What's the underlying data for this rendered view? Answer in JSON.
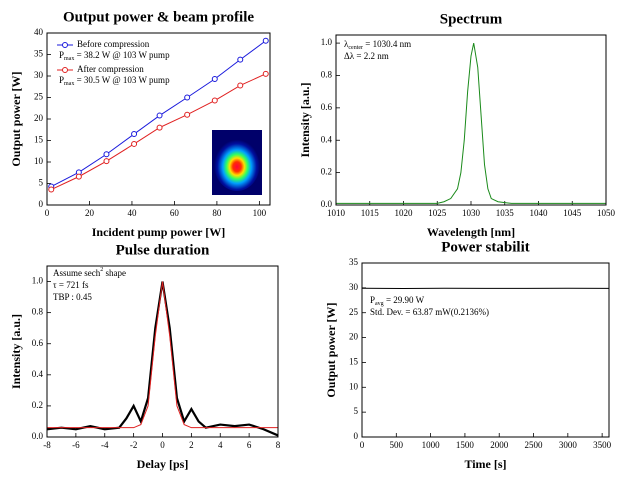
{
  "chart_data": [
    {
      "type": "line",
      "title": "Output power & beam profile",
      "xlabel": "Incident pump power [W]",
      "ylabel": "Output power [W]",
      "xlim": [
        0,
        105
      ],
      "xticks": [
        0,
        20,
        40,
        60,
        80,
        100
      ],
      "ylim": [
        0,
        40
      ],
      "yticks": [
        0,
        5,
        10,
        15,
        20,
        25,
        30,
        35,
        40
      ],
      "markers": true,
      "series": [
        {
          "name": "Before compression",
          "color": "#1a1adc",
          "x": [
            2,
            15,
            28,
            41,
            53,
            66,
            79,
            91,
            103
          ],
          "values": [
            4.3,
            7.6,
            11.8,
            16.5,
            20.8,
            25,
            29.3,
            33.8,
            38.2
          ]
        },
        {
          "name": "After compression",
          "color": "#e02020",
          "x": [
            2,
            15,
            28,
            41,
            53,
            66,
            79,
            91,
            103
          ],
          "values": [
            3.6,
            6.6,
            10.2,
            14.2,
            18,
            21,
            24.3,
            27.8,
            30.5
          ]
        }
      ],
      "annotations": [
        [
          {
            "t": "P"
          },
          {
            "t": "max",
            "sub": true
          },
          {
            "t": " = 38.2 W @ 103 W pump"
          }
        ],
        [
          {
            "t": "P"
          },
          {
            "t": "max",
            "sub": true
          },
          {
            "t": " = 30.5 W @ 103 W pump"
          }
        ]
      ]
    },
    {
      "type": "line",
      "title": "Spectrum",
      "xlabel": "Wavelength [nm]",
      "ylabel": "Intensity [a.u.]",
      "xlim": [
        1010,
        1050
      ],
      "xticks": [
        1010,
        1015,
        1020,
        1025,
        1030,
        1035,
        1040,
        1045,
        1050
      ],
      "ylim": [
        0,
        1.05
      ],
      "yticks": [
        {
          "value": 0,
          "label": "0.0"
        },
        0.2,
        0.4,
        0.6,
        0.8,
        {
          "value": 1,
          "label": "1.0"
        }
      ],
      "series": [
        {
          "color": "#1a8a1a",
          "x": [
            1010,
            1020,
            1025,
            1026,
            1027,
            1028,
            1028.5,
            1029,
            1029.5,
            1030,
            1030.4,
            1031,
            1031.5,
            1032,
            1032.5,
            1033,
            1034,
            1036,
            1050
          ],
          "values": [
            0.01,
            0.01,
            0.01,
            0.02,
            0.04,
            0.1,
            0.2,
            0.4,
            0.7,
            0.92,
            1.0,
            0.85,
            0.55,
            0.25,
            0.1,
            0.04,
            0.02,
            0.01,
            0.01
          ]
        }
      ],
      "annotations": [
        [
          {
            "t": "λ"
          },
          {
            "t": "center",
            "sub": true
          },
          {
            "t": " = 1030.4 nm"
          }
        ],
        [
          {
            "t": "Δλ = 2.2 nm"
          }
        ]
      ]
    },
    {
      "type": "line",
      "title": "Pulse duration",
      "xlabel": "Delay [ps]",
      "ylabel": "Intensity [a.u.]",
      "xlim": [
        -8,
        8
      ],
      "xticks": [
        -8,
        -6,
        -4,
        -2,
        0,
        2,
        4,
        6,
        8
      ],
      "ylim": [
        0,
        1.1
      ],
      "yticks": [
        {
          "value": 0,
          "label": "0.0"
        },
        0.2,
        0.4,
        0.6,
        0.8,
        {
          "value": 1,
          "label": "1.0"
        }
      ],
      "series": [
        {
          "color": "#000000",
          "width": 2.2,
          "x": [
            -8,
            -7,
            -6,
            -5,
            -4,
            -3,
            -2.5,
            -2,
            -1.5,
            -1,
            -0.5,
            0,
            0.5,
            1,
            1.5,
            2,
            2.5,
            3,
            4,
            5,
            6,
            7,
            8
          ],
          "values": [
            0.05,
            0.06,
            0.05,
            0.07,
            0.05,
            0.06,
            0.12,
            0.2,
            0.1,
            0.25,
            0.7,
            1.0,
            0.7,
            0.25,
            0.1,
            0.18,
            0.1,
            0.06,
            0.08,
            0.07,
            0.08,
            0.05,
            0.01
          ]
        },
        {
          "color": "#e02020",
          "x": [
            -8,
            -2,
            -1.5,
            -1,
            -0.5,
            0,
            0.5,
            1,
            1.5,
            2,
            8
          ],
          "values": [
            0.06,
            0.06,
            0.08,
            0.2,
            0.65,
            1.0,
            0.65,
            0.2,
            0.08,
            0.06,
            0.06
          ]
        }
      ],
      "annotations": [
        [
          {
            "t": "Assume sech"
          },
          {
            "t": "2",
            "sup": true
          },
          {
            "t": " shape"
          }
        ],
        [
          {
            "t": "τ = 721 fs"
          }
        ],
        [
          {
            "t": "TBP : 0.45"
          }
        ]
      ]
    },
    {
      "type": "line",
      "title": "Power stabilit",
      "xlabel": "Time [s]",
      "ylabel": "Output power [W]",
      "xlim": [
        0,
        3600
      ],
      "xticks": [
        0,
        500,
        1000,
        1500,
        2000,
        2500,
        3000,
        3500
      ],
      "ylim": [
        0,
        35
      ],
      "yticks": [
        0,
        5,
        10,
        15,
        20,
        25,
        30,
        35
      ],
      "series": [
        {
          "color": "#000000",
          "x": [
            0,
            600,
            1200,
            1800,
            2400,
            3000,
            3600
          ],
          "values": [
            29.92,
            29.88,
            29.91,
            29.9,
            29.89,
            29.91,
            29.9
          ]
        }
      ],
      "annotations": [
        [
          {
            "t": "P"
          },
          {
            "t": "avg",
            "sub": true
          },
          {
            "t": " = 29.90 W"
          }
        ],
        [
          {
            "t": "Std. Dev. = 63.87 mW(0.2136%)"
          }
        ]
      ]
    }
  ]
}
